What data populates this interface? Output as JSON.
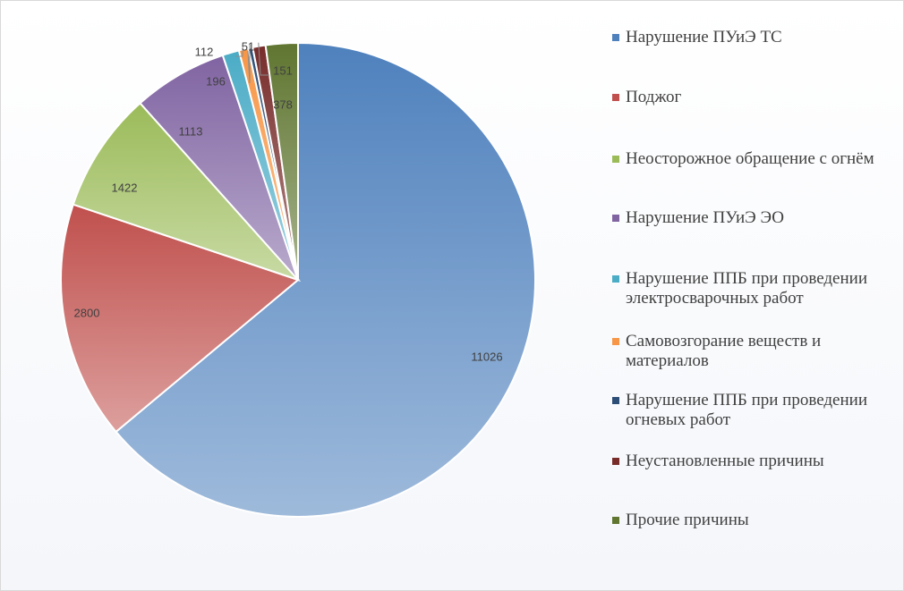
{
  "chart_data": {
    "type": "pie",
    "categories": [
      "Нарушение ПУиЭ ТС",
      "Поджог",
      "Неосторожное обращение с огнём",
      "Нарушение ПУиЭ ЭО",
      "Нарушение ППБ при проведении электросварочных работ",
      "Самовозгорание веществ и материалов",
      "Нарушение ППБ при проведении огневых работ",
      "Неустановленные причины",
      "Прочие причины"
    ],
    "values": [
      11026,
      2800,
      1422,
      1113,
      196,
      112,
      51,
      151,
      378
    ],
    "data_labels": [
      "11026",
      "2800",
      "1422",
      "1113",
      "196",
      "112",
      "51",
      "151",
      "378"
    ],
    "colors": [
      "#4f81bd",
      "#c0504d",
      "#9bbb59",
      "#8064a2",
      "#4bacc6",
      "#f79646",
      "#2c4d75",
      "#772c2a",
      "#5f7530"
    ],
    "legend_position": "right"
  }
}
